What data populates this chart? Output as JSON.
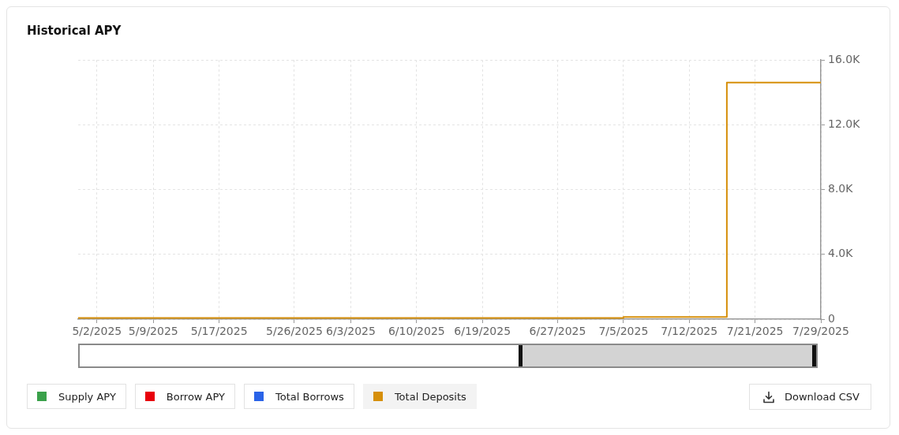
{
  "chart_data": {
    "type": "step",
    "title": "Historical APY",
    "categories": [
      null,
      null,
      "5/2/2025",
      null,
      null,
      null,
      null,
      null,
      "5/9/2025",
      null,
      null,
      null,
      null,
      null,
      null,
      "5/17/2025",
      null,
      null,
      null,
      null,
      null,
      null,
      null,
      "5/26/2025",
      null,
      null,
      null,
      null,
      null,
      "6/3/2025",
      null,
      null,
      null,
      null,
      null,
      null,
      "6/10/2025",
      null,
      null,
      null,
      null,
      null,
      null,
      "6/19/2025",
      null,
      null,
      null,
      null,
      null,
      null,
      null,
      "6/27/2025",
      null,
      null,
      null,
      null,
      null,
      null,
      "7/5/2025",
      null,
      null,
      null,
      null,
      null,
      null,
      "7/12/2025",
      null,
      null,
      null,
      null,
      null,
      null,
      "7/21/2025",
      null,
      null,
      null,
      null,
      null,
      null,
      "7/29/2025"
    ],
    "series": [
      {
        "name": "Supply APY",
        "color": "#3aa14a",
        "values": [
          null,
          null,
          null,
          null,
          null,
          null,
          null,
          null,
          null,
          null,
          null,
          null,
          null,
          null,
          null,
          null,
          null,
          null,
          null,
          null,
          null,
          null,
          null,
          null,
          null,
          null,
          null,
          null,
          null,
          null,
          null,
          null,
          null,
          null,
          null,
          null,
          null,
          null,
          null,
          null,
          null,
          null,
          null,
          null,
          null,
          null,
          null,
          null,
          null,
          null,
          null,
          null,
          null,
          null,
          null,
          null,
          null,
          null,
          null,
          null,
          null,
          null,
          null,
          null,
          null,
          null,
          null,
          null,
          null,
          null,
          null,
          null,
          null,
          null,
          null,
          null,
          null,
          null,
          null,
          null
        ]
      },
      {
        "name": "Borrow APY",
        "color": "#e8000b",
        "values": [
          null,
          null,
          null,
          null,
          null,
          null,
          null,
          null,
          null,
          null,
          null,
          null,
          null,
          null,
          null,
          null,
          null,
          null,
          null,
          null,
          null,
          null,
          null,
          null,
          null,
          null,
          null,
          null,
          null,
          null,
          null,
          null,
          null,
          null,
          null,
          null,
          null,
          null,
          null,
          null,
          null,
          null,
          null,
          null,
          null,
          null,
          null,
          null,
          null,
          null,
          null,
          null,
          null,
          null,
          null,
          null,
          null,
          null,
          null,
          null,
          null,
          null,
          null,
          null,
          null,
          null,
          null,
          null,
          null,
          null,
          null,
          null,
          null,
          null,
          null,
          null,
          null,
          null,
          null,
          null
        ]
      },
      {
        "name": "Total Borrows",
        "color": "#2a63e8",
        "values": [
          null,
          null,
          null,
          null,
          null,
          null,
          null,
          null,
          null,
          null,
          null,
          null,
          null,
          null,
          null,
          null,
          null,
          null,
          null,
          null,
          null,
          null,
          null,
          null,
          null,
          null,
          null,
          null,
          null,
          null,
          null,
          null,
          null,
          null,
          null,
          null,
          null,
          null,
          null,
          null,
          null,
          null,
          null,
          null,
          null,
          null,
          null,
          null,
          null,
          null,
          null,
          null,
          null,
          null,
          null,
          null,
          null,
          null,
          null,
          null,
          null,
          null,
          null,
          null,
          null,
          null,
          null,
          null,
          null,
          null,
          null,
          null,
          null,
          null,
          null,
          null,
          null,
          null,
          null,
          null
        ]
      },
      {
        "name": "Total Deposits",
        "color": "#d68f0a",
        "values": [
          70,
          70,
          70,
          70,
          70,
          70,
          70,
          70,
          70,
          70,
          70,
          70,
          70,
          70,
          70,
          70,
          70,
          70,
          70,
          70,
          70,
          70,
          70,
          70,
          70,
          70,
          70,
          70,
          70,
          70,
          70,
          70,
          70,
          70,
          70,
          70,
          70,
          70,
          70,
          70,
          70,
          70,
          70,
          70,
          70,
          70,
          70,
          70,
          70,
          70,
          70,
          70,
          70,
          70,
          70,
          70,
          70,
          70,
          130,
          130,
          130,
          130,
          130,
          130,
          130,
          130,
          130,
          130,
          130,
          14600,
          14600,
          14600,
          14600,
          14600,
          14600,
          14600,
          14600,
          14600,
          14600,
          14600
        ]
      }
    ],
    "ylim": [
      0,
      16000
    ],
    "yticks": [
      0,
      {
        "value": 4000,
        "label": "4.0K"
      },
      {
        "value": 8000,
        "label": "8.0K"
      },
      {
        "value": 12000,
        "label": "12.0K"
      },
      {
        "value": 16000,
        "label": "16.0K"
      }
    ],
    "grid": true,
    "legend": "bottom",
    "marker": "none",
    "annotations": [
      "Download CSV"
    ]
  }
}
